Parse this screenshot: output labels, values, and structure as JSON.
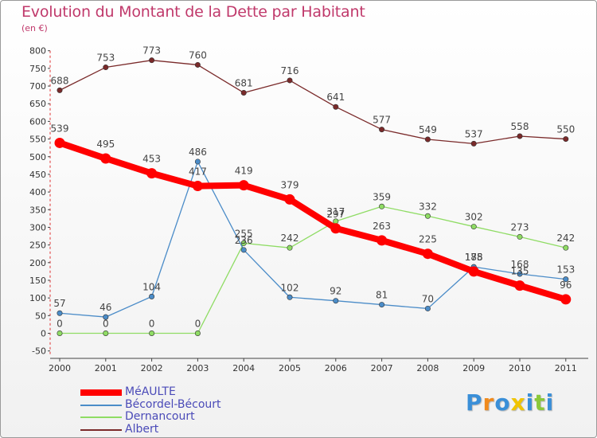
{
  "chart_data": {
    "type": "line",
    "title": "Evolution du Montant de la Dette par Habitant",
    "subtitle": "(en €)",
    "categories": [
      "2000",
      "2001",
      "2002",
      "2003",
      "2004",
      "2005",
      "2006",
      "2007",
      "2008",
      "2009",
      "2010",
      "2011"
    ],
    "ylim": [
      -50,
      800
    ],
    "yticks": [
      -50,
      0,
      50,
      100,
      150,
      200,
      250,
      300,
      350,
      400,
      450,
      500,
      550,
      600,
      650,
      700,
      750,
      800
    ],
    "grid": false,
    "legend_position": "bottom-left",
    "series": [
      {
        "name": "MéAULTE",
        "color": "#ff0000",
        "values": [
          539,
          495,
          453,
          417,
          419,
          379,
          297,
          263,
          225,
          175,
          135,
          96
        ]
      },
      {
        "name": "Bécordel-Bécourt",
        "color": "#4b8cc8",
        "values": [
          57,
          46,
          104,
          486,
          236,
          102,
          92,
          81,
          70,
          188,
          168,
          153
        ]
      },
      {
        "name": "Dernancourt",
        "color": "#8fdc64",
        "values": [
          0,
          0,
          0,
          0,
          255,
          242,
          317,
          359,
          332,
          302,
          273,
          242
        ]
      },
      {
        "name": "Albert",
        "color": "#7a2a2a",
        "values": [
          688,
          753,
          773,
          760,
          681,
          716,
          641,
          577,
          549,
          537,
          558,
          550
        ]
      }
    ]
  },
  "logo": {
    "letters": [
      "P",
      "r",
      "o",
      "x",
      "i",
      "t",
      "i"
    ],
    "colors": [
      "#3a8fd8",
      "#f08a1c",
      "#3a8fd8",
      "#f0c400",
      "#3a8fd8",
      "#8bc83a",
      "#3a8fd8"
    ]
  }
}
